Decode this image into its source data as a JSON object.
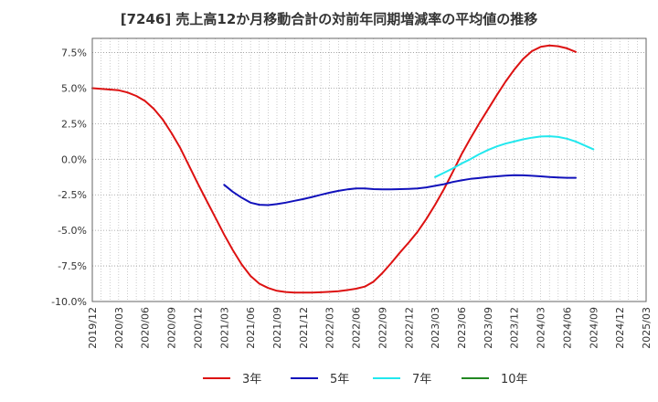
{
  "chart_data": {
    "type": "line",
    "title": "[7246]  売上高12か月移動合計の対前年同期増減率の平均値の推移",
    "xlabel": "",
    "ylabel": "",
    "ylim": [
      -10.0,
      8.5
    ],
    "y_ticks": [
      "7.5%",
      "5.0%",
      "2.5%",
      "0.0%",
      "-2.5%",
      "-5.0%",
      "-7.5%",
      "-10.0%"
    ],
    "y_tick_values": [
      7.5,
      5.0,
      2.5,
      0.0,
      -2.5,
      -5.0,
      -7.5,
      -10.0
    ],
    "x_ticks": [
      "2019/12",
      "2020/03",
      "2020/06",
      "2020/09",
      "2020/12",
      "2021/03",
      "2021/06",
      "2021/09",
      "2021/12",
      "2022/03",
      "2022/06",
      "2022/09",
      "2022/12",
      "2023/03",
      "2023/06",
      "2023/09",
      "2023/12",
      "2024/03",
      "2024/06",
      "2024/09",
      "2024/12",
      "2025/03"
    ],
    "grid": true,
    "legend_position": "bottom",
    "series": [
      {
        "name": "3年",
        "color": "#dd1111",
        "points": [
          [
            "2019/12",
            5.0
          ],
          [
            "2020/01",
            4.95
          ],
          [
            "2020/02",
            4.9
          ],
          [
            "2020/03",
            4.85
          ],
          [
            "2020/04",
            4.7
          ],
          [
            "2020/05",
            4.45
          ],
          [
            "2020/06",
            4.1
          ],
          [
            "2020/07",
            3.55
          ],
          [
            "2020/08",
            2.8
          ],
          [
            "2020/09",
            1.85
          ],
          [
            "2020/10",
            0.8
          ],
          [
            "2020/11",
            -0.45
          ],
          [
            "2020/12",
            -1.7
          ],
          [
            "2021/01",
            -2.9
          ],
          [
            "2021/02",
            -4.1
          ],
          [
            "2021/03",
            -5.3
          ],
          [
            "2021/04",
            -6.4
          ],
          [
            "2021/05",
            -7.4
          ],
          [
            "2021/06",
            -8.2
          ],
          [
            "2021/07",
            -8.75
          ],
          [
            "2021/08",
            -9.05
          ],
          [
            "2021/09",
            -9.25
          ],
          [
            "2021/10",
            -9.33
          ],
          [
            "2021/11",
            -9.37
          ],
          [
            "2021/12",
            -9.38
          ],
          [
            "2022/01",
            -9.37
          ],
          [
            "2022/02",
            -9.35
          ],
          [
            "2022/03",
            -9.32
          ],
          [
            "2022/04",
            -9.28
          ],
          [
            "2022/05",
            -9.2
          ],
          [
            "2022/06",
            -9.1
          ],
          [
            "2022/07",
            -8.95
          ],
          [
            "2022/08",
            -8.6
          ],
          [
            "2022/09",
            -8.0
          ],
          [
            "2022/10",
            -7.3
          ],
          [
            "2022/11",
            -6.55
          ],
          [
            "2022/12",
            -5.85
          ],
          [
            "2023/01",
            -5.1
          ],
          [
            "2023/02",
            -4.2
          ],
          [
            "2023/03",
            -3.2
          ],
          [
            "2023/04",
            -2.1
          ],
          [
            "2023/05",
            -0.9
          ],
          [
            "2023/06",
            0.35
          ],
          [
            "2023/07",
            1.45
          ],
          [
            "2023/08",
            2.5
          ],
          [
            "2023/09",
            3.5
          ],
          [
            "2023/10",
            4.5
          ],
          [
            "2023/11",
            5.45
          ],
          [
            "2023/12",
            6.3
          ],
          [
            "2024/01",
            7.05
          ],
          [
            "2024/02",
            7.6
          ],
          [
            "2024/03",
            7.9
          ],
          [
            "2024/04",
            8.0
          ],
          [
            "2024/05",
            7.95
          ],
          [
            "2024/06",
            7.8
          ],
          [
            "2024/07",
            7.55
          ]
        ]
      },
      {
        "name": "5年",
        "color": "#1111bb",
        "points": [
          [
            "2021/03",
            -1.8
          ],
          [
            "2021/04",
            -2.3
          ],
          [
            "2021/05",
            -2.7
          ],
          [
            "2021/06",
            -3.05
          ],
          [
            "2021/07",
            -3.2
          ],
          [
            "2021/08",
            -3.22
          ],
          [
            "2021/09",
            -3.15
          ],
          [
            "2021/10",
            -3.05
          ],
          [
            "2021/11",
            -2.92
          ],
          [
            "2021/12",
            -2.8
          ],
          [
            "2022/01",
            -2.65
          ],
          [
            "2022/02",
            -2.5
          ],
          [
            "2022/03",
            -2.35
          ],
          [
            "2022/04",
            -2.22
          ],
          [
            "2022/05",
            -2.12
          ],
          [
            "2022/06",
            -2.05
          ],
          [
            "2022/07",
            -2.05
          ],
          [
            "2022/08",
            -2.1
          ],
          [
            "2022/09",
            -2.12
          ],
          [
            "2022/10",
            -2.12
          ],
          [
            "2022/11",
            -2.1
          ],
          [
            "2022/12",
            -2.08
          ],
          [
            "2023/01",
            -2.05
          ],
          [
            "2023/02",
            -1.98
          ],
          [
            "2023/03",
            -1.87
          ],
          [
            "2023/04",
            -1.75
          ],
          [
            "2023/05",
            -1.6
          ],
          [
            "2023/06",
            -1.48
          ],
          [
            "2023/07",
            -1.38
          ],
          [
            "2023/08",
            -1.32
          ],
          [
            "2023/09",
            -1.25
          ],
          [
            "2023/10",
            -1.2
          ],
          [
            "2023/11",
            -1.15
          ],
          [
            "2023/12",
            -1.12
          ],
          [
            "2024/01",
            -1.13
          ],
          [
            "2024/02",
            -1.16
          ],
          [
            "2024/03",
            -1.2
          ],
          [
            "2024/04",
            -1.25
          ],
          [
            "2024/05",
            -1.28
          ],
          [
            "2024/06",
            -1.3
          ],
          [
            "2024/07",
            -1.3
          ]
        ]
      },
      {
        "name": "7年",
        "color": "#22e8ee",
        "points": [
          [
            "2023/03",
            -1.25
          ],
          [
            "2023/04",
            -0.95
          ],
          [
            "2023/05",
            -0.65
          ],
          [
            "2023/06",
            -0.3
          ],
          [
            "2023/07",
            0.0
          ],
          [
            "2023/08",
            0.35
          ],
          [
            "2023/09",
            0.65
          ],
          [
            "2023/10",
            0.9
          ],
          [
            "2023/11",
            1.1
          ],
          [
            "2023/12",
            1.25
          ],
          [
            "2024/01",
            1.4
          ],
          [
            "2024/02",
            1.52
          ],
          [
            "2024/03",
            1.6
          ],
          [
            "2024/04",
            1.62
          ],
          [
            "2024/05",
            1.57
          ],
          [
            "2024/06",
            1.45
          ],
          [
            "2024/07",
            1.25
          ],
          [
            "2024/08",
            0.97
          ],
          [
            "2024/09",
            0.7
          ]
        ]
      },
      {
        "name": "10年",
        "color": "#228822",
        "points": []
      }
    ]
  }
}
